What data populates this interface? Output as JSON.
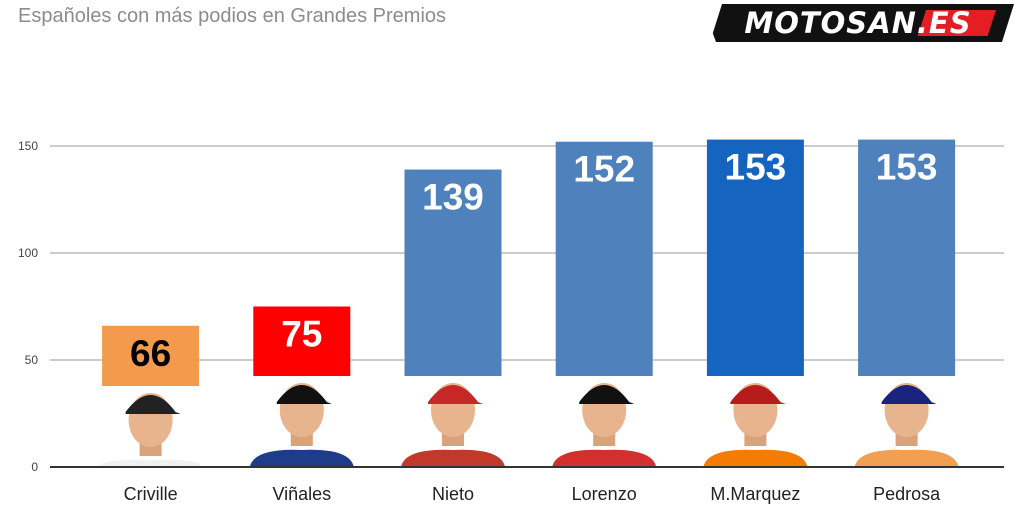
{
  "header": {
    "title": "Españoles con más podios en Grandes Premios",
    "logo_text": "MOTOSAN.ES"
  },
  "colors": {
    "grid": "#cccccc",
    "axis": "#333333",
    "logo_bg": "#111111",
    "logo_accent": "#e31e24"
  },
  "chart_data": {
    "type": "bar",
    "title": "Españoles con más podios en Grandes Premios",
    "xlabel": "",
    "ylabel": "",
    "ylim": [
      0,
      160
    ],
    "yticks": [
      0,
      50,
      100,
      150
    ],
    "grid": true,
    "categories": [
      "Criville",
      "Viñales",
      "Nieto",
      "Lorenzo",
      "M.Marquez",
      "Pedrosa"
    ],
    "values": [
      66,
      75,
      139,
      152,
      153,
      153
    ],
    "colors": [
      "#f49a4c",
      "#ff0000",
      "#4f81bd",
      "#4f81bd",
      "#1565c0",
      "#4f81bd"
    ],
    "label_colors": [
      "#000000",
      "#ffffff",
      "#ffffff",
      "#ffffff",
      "#ffffff",
      "#ffffff"
    ],
    "rider_photos": [
      "Criville",
      "Viñales",
      "Nieto",
      "Lorenzo",
      "M.Marquez",
      "Pedrosa"
    ]
  }
}
